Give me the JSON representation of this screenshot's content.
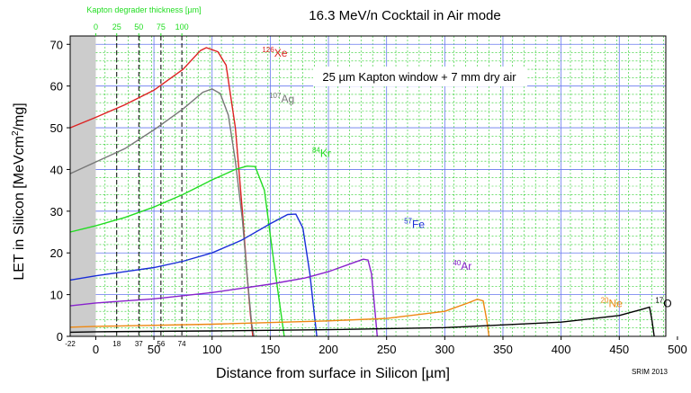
{
  "chart_data": {
    "type": "line",
    "title": "16.3 MeV/n Cocktail in Air mode",
    "subtitle": "25 µm Kapton window + 7 mm dry air",
    "xlabel": "Distance from surface in Silicon [µm]",
    "ylabel_main": "LET in Silicon [MeVcm",
    "ylabel_sup": "2",
    "ylabel_tail": "/mg]",
    "xlim": [
      -22,
      490
    ],
    "ylim": [
      0,
      72
    ],
    "x_ticks": [
      0,
      50,
      100,
      150,
      200,
      250,
      300,
      350,
      400,
      450,
      500
    ],
    "y_ticks": [
      0,
      10,
      20,
      30,
      40,
      50,
      60,
      70
    ],
    "shaded_region": [
      -22,
      0
    ],
    "top_axis": {
      "label": "Kapton degrader thickness [µm]",
      "ticks": [
        {
          "label": "0",
          "x": 0
        },
        {
          "label": "25",
          "x": 18
        },
        {
          "label": "50",
          "x": 37
        },
        {
          "label": "75",
          "x": 56
        },
        {
          "label": "100",
          "x": 74
        }
      ],
      "color": "#22dd22"
    },
    "degrader_lines": [
      18,
      37,
      56,
      74
    ],
    "bottom_extra_labels": [
      {
        "label": "-22",
        "x": -22
      },
      {
        "label": "18",
        "x": 18
      },
      {
        "label": "37",
        "x": 37
      },
      {
        "label": "56",
        "x": 56
      },
      {
        "label": "74",
        "x": 74
      }
    ],
    "series": [
      {
        "name": "Xe",
        "mass": "126",
        "color": "#dd2222",
        "label_x": 143,
        "label_y": 67,
        "points": [
          [
            -22,
            50
          ],
          [
            0,
            52.5
          ],
          [
            25,
            55.5
          ],
          [
            50,
            59
          ],
          [
            75,
            64
          ],
          [
            90,
            68.5
          ],
          [
            95,
            69.2
          ],
          [
            105,
            68.2
          ],
          [
            112,
            65
          ],
          [
            120,
            50
          ],
          [
            126,
            30
          ],
          [
            130,
            15
          ],
          [
            133,
            5
          ],
          [
            135,
            0
          ]
        ]
      },
      {
        "name": "Ag",
        "mass": "107",
        "color": "#777777",
        "label_x": 149,
        "label_y": 56,
        "points": [
          [
            -22,
            39
          ],
          [
            0,
            41.8
          ],
          [
            25,
            45
          ],
          [
            50,
            49.5
          ],
          [
            75,
            54.5
          ],
          [
            92,
            58.5
          ],
          [
            100,
            59.3
          ],
          [
            107,
            58.2
          ],
          [
            114,
            53
          ],
          [
            120,
            42
          ],
          [
            126,
            28
          ],
          [
            130,
            15
          ],
          [
            134,
            3
          ],
          [
            136,
            0
          ]
        ]
      },
      {
        "name": "Kr",
        "mass": "84",
        "color": "#22dd22",
        "label_x": 186,
        "label_y": 43,
        "points": [
          [
            -22,
            25
          ],
          [
            0,
            26.5
          ],
          [
            25,
            28.5
          ],
          [
            50,
            31
          ],
          [
            75,
            34
          ],
          [
            100,
            37.5
          ],
          [
            120,
            40
          ],
          [
            130,
            40.8
          ],
          [
            137,
            40.7
          ],
          [
            145,
            35
          ],
          [
            152,
            20
          ],
          [
            158,
            8
          ],
          [
            162,
            0
          ]
        ]
      },
      {
        "name": "Fe",
        "mass": "57",
        "color": "#1a2ed8",
        "label_x": 265,
        "label_y": 26,
        "points": [
          [
            -22,
            13.5
          ],
          [
            0,
            14.5
          ],
          [
            25,
            15.5
          ],
          [
            50,
            16.5
          ],
          [
            75,
            18
          ],
          [
            100,
            20
          ],
          [
            125,
            23
          ],
          [
            150,
            27
          ],
          [
            165,
            29.2
          ],
          [
            172,
            29.3
          ],
          [
            178,
            26
          ],
          [
            184,
            15
          ],
          [
            188,
            5
          ],
          [
            190,
            0
          ]
        ]
      },
      {
        "name": "Ar",
        "mass": "40",
        "color": "#8822cc",
        "label_x": 307,
        "label_y": 16,
        "points": [
          [
            -22,
            7.3
          ],
          [
            0,
            8
          ],
          [
            50,
            9
          ],
          [
            100,
            10.5
          ],
          [
            150,
            12.5
          ],
          [
            180,
            14
          ],
          [
            200,
            15.5
          ],
          [
            220,
            17.5
          ],
          [
            230,
            18.5
          ],
          [
            234,
            18.3
          ],
          [
            237,
            15
          ],
          [
            240,
            6
          ],
          [
            242,
            0
          ]
        ]
      },
      {
        "name": "Ne",
        "mass": "20",
        "color": "#ee8811",
        "label_x": 434,
        "label_y": 7,
        "points": [
          [
            -22,
            2.2
          ],
          [
            0,
            2.4
          ],
          [
            100,
            2.9
          ],
          [
            200,
            3.7
          ],
          [
            250,
            4.3
          ],
          [
            300,
            6
          ],
          [
            320,
            8
          ],
          [
            328,
            8.9
          ],
          [
            333,
            8.5
          ],
          [
            336,
            4
          ],
          [
            338,
            0
          ]
        ]
      },
      {
        "name": "O",
        "mass": "17",
        "color": "#000000",
        "label_x": 481,
        "label_y": 7,
        "points": [
          [
            -22,
            1
          ],
          [
            0,
            1.1
          ],
          [
            100,
            1.3
          ],
          [
            200,
            1.6
          ],
          [
            300,
            2.1
          ],
          [
            400,
            3.4
          ],
          [
            450,
            5
          ],
          [
            470,
            6.5
          ],
          [
            476,
            7
          ],
          [
            478,
            4
          ],
          [
            480,
            0
          ]
        ]
      }
    ]
  },
  "footer": {
    "credit": "SRIM 2013"
  }
}
